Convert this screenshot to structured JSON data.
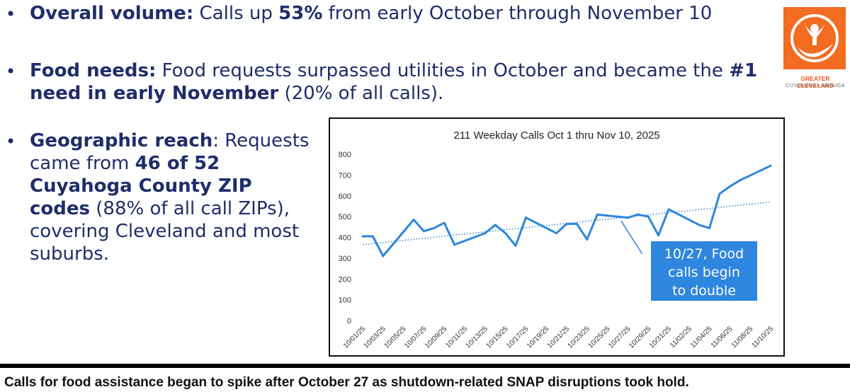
{
  "bullets": [
    {
      "lead": "Overall volume:",
      "t1": " Calls up ",
      "b1": "53%",
      "t2": " from early October through November 10"
    },
    {
      "lead": "Food needs:",
      "t1": " Food requests surpassed utilities in October and became the ",
      "b1": "#1 need in early November",
      "t2": " (20% of all calls)."
    },
    {
      "lead": "Geographic reach",
      "t0": ":",
      "t1": " Requests came from ",
      "b1": "46 of 52 Cuyahoga County ZIP codes",
      "t2": " (88% of all call ZIPs), covering Cleveland and most suburbs."
    }
  ],
  "bullet_symbol": "•",
  "logo": {
    "name": "GREATER CLEVELAND",
    "sub": "CUYAHOGA • GEAUGA",
    "icon": "united-way-hand-person-icon",
    "color": "#f36c21"
  },
  "caption": "Calls for food assistance began to spike after October 27 as shutdown-related SNAP disruptions took hold.",
  "chart_data": {
    "type": "line",
    "title": "211 Weekday Calls Oct 1 thru Nov 10, 2025",
    "xlabel": "",
    "ylabel": "",
    "ylim": [
      0,
      800
    ],
    "yticks": [
      0,
      100,
      200,
      300,
      400,
      500,
      600,
      700,
      800
    ],
    "grid": false,
    "x": [
      "10/01/25",
      "10/02/25",
      "10/03/25",
      "10/06/25",
      "10/07/25",
      "10/08/25",
      "10/09/25",
      "10/10/25",
      "10/13/25",
      "10/14/25",
      "10/15/25",
      "10/16/25",
      "10/17/25",
      "10/20/25",
      "10/21/25",
      "10/22/25",
      "10/23/25",
      "10/24/25",
      "10/27/25",
      "10/28/25",
      "10/29/25",
      "10/30/25",
      "10/31/25",
      "11/03/25",
      "11/04/25",
      "11/05/25",
      "11/06/25",
      "11/07/25",
      "11/10/25"
    ],
    "xtick_labels": [
      "10/01/25",
      "10/03/25",
      "10/05/25",
      "10/07/25",
      "10/09/25",
      "10/11/25",
      "10/13/25",
      "10/15/25",
      "10/17/25",
      "10/19/25",
      "10/21/25",
      "10/23/25",
      "10/25/25",
      "10/27/25",
      "10/29/25",
      "10/31/25",
      "11/02/25",
      "11/04/25",
      "11/06/25",
      "11/08/25",
      "11/10/25"
    ],
    "series": [
      {
        "values": [
          405,
          405,
          310,
          485,
          430,
          445,
          470,
          365,
          420,
          460,
          420,
          360,
          495,
          420,
          465,
          465,
          390,
          510,
          495,
          510,
          500,
          410,
          535,
          460,
          445,
          610,
          645,
          675,
          745
        ],
        "color": "#2e86de"
      }
    ],
    "trendline": {
      "values": [
        365,
        570
      ],
      "style": "dotted",
      "color": "#2e86de"
    },
    "annotation": {
      "text": "10/27, Food calls begin to double",
      "x": "10/28/25",
      "background": "#2e86de",
      "color": "#ffffff"
    }
  }
}
